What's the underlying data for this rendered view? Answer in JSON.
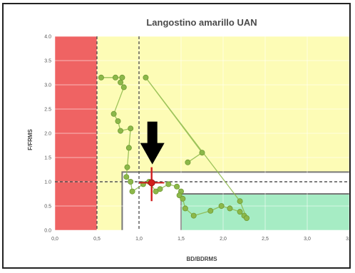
{
  "chart_data": {
    "type": "scatter",
    "title": "Langostino amarillo UAN",
    "xlabel": "BD/BDRMS",
    "ylabel": "F/FRMS",
    "xlim": [
      0,
      3.5
    ],
    "ylim": [
      0,
      4
    ],
    "x_ticks": [
      "0,0",
      "0,5",
      "1,0",
      "1,5",
      "2,0",
      "2,5",
      "3,0",
      "3,5"
    ],
    "y_ticks": [
      "0.0",
      "0.5",
      "1.0",
      "1.5",
      "2.0",
      "2.5",
      "3.0",
      "3.5",
      "4.0"
    ],
    "grid": true,
    "legend": "none",
    "zones": [
      {
        "name": "overexploited-collapse",
        "x": [
          0,
          0.5
        ],
        "y": [
          0,
          4
        ],
        "color": "#ef6363"
      },
      {
        "name": "overexploited",
        "x": [
          0.5,
          3.5
        ],
        "y": [
          0,
          4
        ],
        "color": "#fdfcb6"
      },
      {
        "name": "full-exploitation",
        "x": [
          0.8,
          3.5
        ],
        "y": [
          0,
          1.2
        ],
        "color": "#ffffff"
      },
      {
        "name": "underexploited",
        "x": [
          1.5,
          3.5
        ],
        "y": [
          0,
          0.75
        ],
        "color": "#a6ecc4"
      }
    ],
    "reference_lines": [
      {
        "axis": "x",
        "value": 0.5,
        "style": "dashed"
      },
      {
        "axis": "x",
        "value": 1.0,
        "style": "dashed"
      },
      {
        "axis": "y",
        "value": 1.0,
        "style": "dashed"
      }
    ],
    "series": [
      {
        "x": [
          0.55,
          0.72,
          0.8,
          0.78,
          0.82,
          0.7,
          0.75,
          0.78,
          0.9,
          0.88,
          0.86,
          0.85,
          0.9,
          0.92,
          1.05,
          1.12,
          1.2,
          1.25,
          1.35,
          1.45,
          1.5,
          1.48,
          1.52,
          1.55,
          1.65,
          1.85,
          1.98,
          2.08,
          2.2,
          2.25,
          2.28,
          2.2,
          1.08,
          1.75,
          1.58
        ],
        "y": [
          3.15,
          3.15,
          3.15,
          3.05,
          2.95,
          2.4,
          2.25,
          2.05,
          2.1,
          1.7,
          1.3,
          1.1,
          1.0,
          0.8,
          0.95,
          1.0,
          0.8,
          0.85,
          0.95,
          0.9,
          0.8,
          0.72,
          0.65,
          0.45,
          0.3,
          0.4,
          0.5,
          0.45,
          0.38,
          0.3,
          0.25,
          0.6,
          3.15,
          1.6,
          1.4
        ],
        "color": "#8cb84a"
      }
    ],
    "current_point": {
      "x": 1.15,
      "y": 0.98,
      "x_range": [
        1.0,
        1.3
      ],
      "y_range": [
        0.6,
        1.3
      ],
      "color": "#d11e1e"
    },
    "annotation": "down-arrow pointing at the current point"
  }
}
